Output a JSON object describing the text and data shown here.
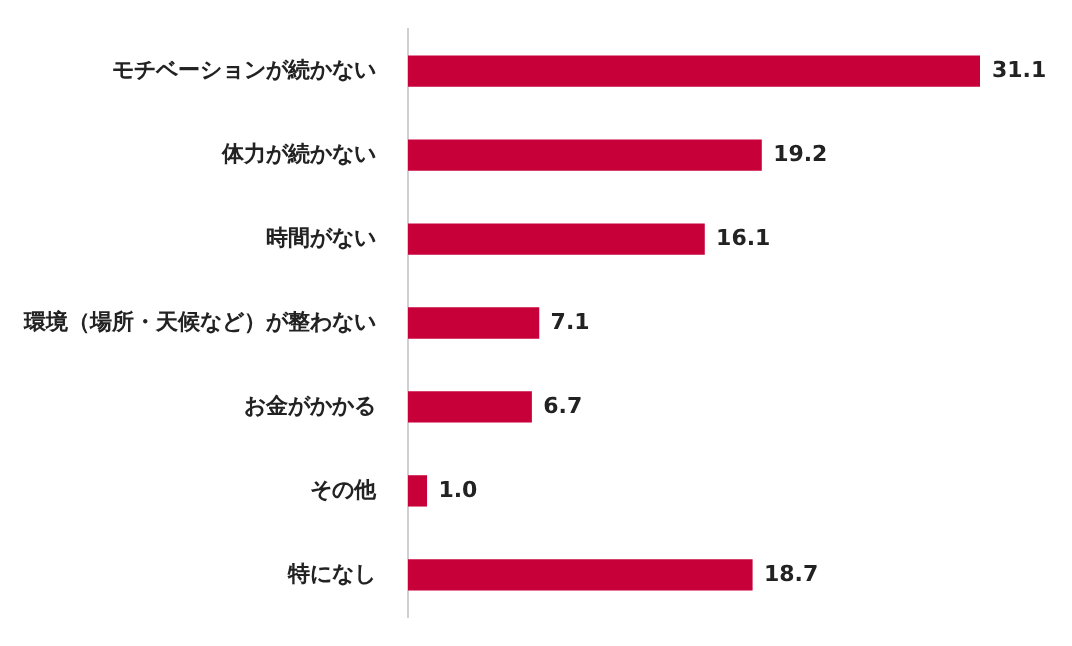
{
  "chart_data": {
    "type": "bar",
    "orientation": "horizontal",
    "categories": [
      "モチベーションが続かない",
      "体力が続かない",
      "時間がない",
      "環境（場所・天候など）が整わない",
      "お金がかかる",
      "その他",
      "特になし"
    ],
    "values": [
      31.1,
      19.2,
      16.1,
      7.1,
      6.7,
      1.0,
      18.7
    ],
    "value_labels": [
      "31.1",
      "19.2",
      "16.1",
      "7.1",
      "6.7",
      "1.0",
      "18.7"
    ],
    "color": "#c8003a",
    "tick_labels": "y",
    "legend": false
  }
}
